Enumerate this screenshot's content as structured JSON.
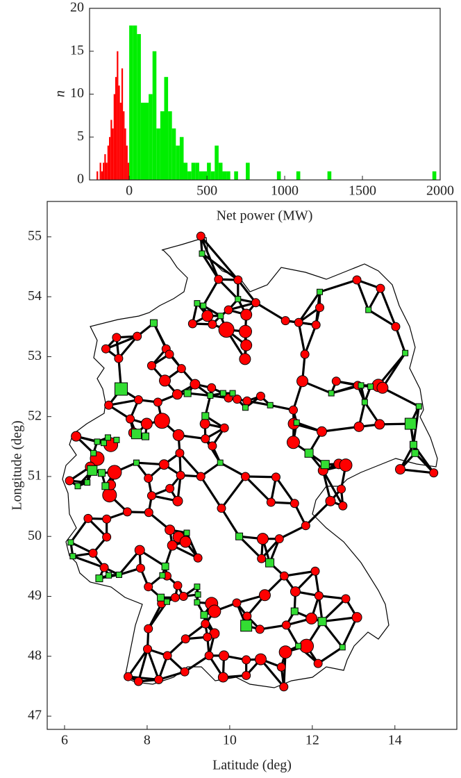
{
  "chart_data": [
    {
      "type": "histogram",
      "xlabel": "Net power (MW)",
      "ylabel": "n",
      "xlim": [
        -255,
        2000
      ],
      "xticks": [
        0,
        500,
        1000,
        1500,
        2000
      ],
      "ylim": [
        0,
        20
      ],
      "yticks": [
        0,
        5,
        10,
        15,
        20
      ],
      "series": [
        {
          "color": "#ff0000",
          "bins": [
            -210,
            -200,
            -190,
            -180,
            -170,
            -160,
            -150,
            -140,
            -130,
            -120,
            -110,
            -100,
            -90,
            -80,
            -70,
            -60,
            -50,
            -40,
            -30,
            -20,
            -10,
            0
          ],
          "values": [
            1,
            0,
            2,
            1,
            2,
            3,
            2,
            4,
            5,
            7,
            6,
            10,
            12,
            15,
            11,
            9,
            13,
            8,
            6,
            4,
            2
          ]
        },
        {
          "color": "#00ee00",
          "bins": [
            0,
            25,
            50,
            75,
            100,
            125,
            150,
            175,
            200,
            225,
            250,
            275,
            300,
            325,
            350,
            375,
            400,
            425,
            450,
            475,
            500,
            525,
            550,
            575,
            600,
            625,
            650,
            675,
            700,
            725,
            750,
            775,
            800,
            825,
            850,
            875,
            900,
            925,
            950,
            975,
            1000,
            1025,
            1050,
            1075,
            1100,
            1125,
            1150,
            1175,
            1200,
            1225,
            1250,
            1275,
            1300,
            1325,
            1350,
            1375,
            1400,
            1425,
            1450,
            1475,
            1500,
            1525,
            1550,
            1575,
            1600,
            1625,
            1650,
            1675,
            1700,
            1725,
            1750,
            1775,
            1800,
            1825,
            1850,
            1875,
            1900,
            1925,
            1950,
            1975,
            2000
          ],
          "values": [
            18,
            18,
            17,
            9,
            9,
            10,
            15,
            6,
            8,
            12,
            8,
            6,
            4,
            5,
            2,
            1,
            2,
            2,
            1,
            1,
            2,
            1,
            4,
            2,
            1,
            1,
            0,
            1,
            0,
            0,
            2,
            0,
            0,
            0,
            0,
            0,
            0,
            0,
            1,
            0,
            0,
            0,
            0,
            1,
            0,
            0,
            0,
            0,
            0,
            0,
            0,
            1,
            0,
            0,
            0,
            0,
            0,
            0,
            0,
            0,
            0,
            0,
            0,
            0,
            0,
            0,
            0,
            0,
            0,
            0,
            0,
            0,
            0,
            0,
            0,
            0,
            0,
            0,
            1,
            0
          ]
        }
      ]
    },
    {
      "type": "scatter",
      "xlabel": "Latitude (deg)",
      "ylabel": "Longitude (deg)",
      "xlim": [
        5.58,
        15.5
      ],
      "xticks": [
        6,
        8,
        10,
        12,
        14
      ],
      "ylim": [
        46.78,
        55.59
      ],
      "yticks": [
        47,
        48,
        49,
        50,
        51,
        52,
        53,
        54,
        55
      ],
      "series": [
        {
          "color": "#ff0000",
          "marker": "circle",
          "x": [
            9.3,
            9.73,
            10.2,
            9.97,
            9.46,
            9.58,
            9.1,
            9.92,
            10.4,
            10.63,
            11.35,
            11.67,
            12.18,
            13.08,
            13.65,
            14.02,
            12.09,
            10.38,
            10.4,
            10.37,
            11.82,
            11.76,
            12.58,
            13.1,
            13.6,
            13.7,
            8.46,
            8.54,
            8.11,
            7.31,
            7.0,
            7.26,
            7.76,
            8.83,
            9.16,
            8.73,
            8.43,
            7.79,
            7.07,
            8.26,
            9.56,
            10.18,
            10.42,
            10.75,
            9.97,
            11.54,
            11.55,
            11.54,
            12.23,
            13.13,
            13.63,
            12.26,
            12.64,
            12.81,
            14.13,
            14.94,
            11.12,
            10.38,
            9.3,
            9.8,
            11.0,
            11.57,
            12.44,
            12.74,
            12.7,
            9.4,
            9.87,
            9.41,
            9.58,
            8.36,
            7.99,
            7.59,
            7.67,
            8.76,
            8.79,
            8.41,
            8.81,
            8.03,
            8.55,
            8.11,
            8.74,
            7.52,
            8.04,
            7.02,
            6.57,
            6.12,
            6.28,
            7.12,
            6.79,
            6.62,
            7.21,
            7.09,
            7.12,
            8.55,
            8.76,
            8.93,
            8.61,
            9.23,
            7.02,
            6.69,
            6.96,
            7.82,
            7.84,
            8.48,
            8.03,
            8.74,
            8.88,
            8.35,
            8.68,
            9.56,
            9.63,
            9.41,
            9.63,
            10.17,
            10.42,
            10.8,
            10.77,
            11.2,
            11.84,
            11.32,
            10.85,
            11.59,
            12.07,
            12.16,
            11.98,
            11.37,
            11.35,
            11.86,
            11.25,
            12.14,
            13.08,
            12.81,
            10.73,
            10.75,
            10.4,
            9.86,
            9.5,
            9.46,
            8.93,
            8.49,
            8.03,
            8.01,
            7.79,
            8.28,
            7.54,
            8.91,
            9.84,
            10.4,
            11.31
          ],
          "y": [
            55.01,
            54.29,
            54.28,
            53.78,
            53.68,
            53.54,
            53.55,
            53.45,
            53.7,
            53.9,
            53.6,
            53.57,
            53.82,
            54.28,
            54.14,
            53.5,
            53.53,
            53.42,
            53.19,
            52.96,
            53.04,
            52.59,
            52.59,
            52.52,
            52.52,
            52.48,
            53.13,
            53.04,
            52.85,
            52.97,
            53.13,
            53.32,
            53.34,
            52.8,
            52.54,
            52.37,
            52.6,
            52.28,
            52.19,
            52.24,
            52.48,
            52.29,
            52.26,
            52.34,
            52.31,
            52.11,
            51.88,
            51.57,
            51.75,
            51.83,
            51.87,
            51.1,
            51.21,
            51.19,
            51.12,
            51.06,
            50.99,
            51.0,
            51.0,
            50.47,
            50.57,
            50.55,
            50.59,
            50.51,
            50.79,
            51.88,
            51.81,
            51.63,
            51.51,
            51.93,
            51.88,
            51.96,
            51.73,
            51.69,
            51.39,
            51.2,
            51.02,
            50.97,
            50.8,
            50.68,
            50.59,
            50.41,
            50.4,
            50.29,
            50.3,
            50.93,
            51.67,
            51.53,
            51.3,
            51.16,
            51.07,
            50.69,
            50.86,
            50.11,
            49.99,
            49.91,
            49.85,
            49.64,
            49.99,
            49.72,
            49.48,
            49.77,
            49.47,
            49.34,
            49.16,
            49.18,
            49.0,
            48.88,
            48.98,
            48.88,
            48.75,
            48.54,
            48.38,
            48.89,
            48.67,
            49.96,
            49.63,
            49.96,
            50.18,
            49.34,
            49.02,
            49.08,
            49.42,
            49.01,
            48.63,
            48.52,
            48.07,
            48.17,
            47.82,
            47.88,
            48.65,
            48.96,
            48.45,
            47.95,
            47.94,
            48.01,
            48.01,
            48.32,
            48.29,
            48.01,
            48.46,
            48.12,
            47.58,
            47.61,
            47.66,
            47.74,
            47.65,
            47.68,
            47.49
          ],
          "sizes": [
            6,
            6,
            6,
            6,
            8,
            6,
            6,
            11,
            8,
            6,
            6,
            6,
            6,
            6,
            6,
            6,
            6,
            9,
            8,
            8,
            6,
            8,
            6,
            6,
            9,
            8,
            6,
            6,
            6,
            6,
            6,
            6,
            6,
            6,
            7,
            7,
            8,
            6,
            6,
            6,
            6,
            6,
            6,
            6,
            6,
            6,
            8,
            9,
            7,
            7,
            7,
            7,
            7,
            9,
            7,
            6,
            6,
            6,
            6,
            6,
            6,
            6,
            7,
            6,
            6,
            7,
            6,
            6,
            6,
            11,
            8,
            6,
            7,
            8,
            6,
            7,
            6,
            6,
            6,
            6,
            7,
            6,
            6,
            6,
            6,
            6,
            7,
            10,
            10,
            7,
            10,
            10,
            7,
            7,
            8,
            8,
            7,
            6,
            6,
            6,
            6,
            7,
            6,
            6,
            6,
            6,
            6,
            6,
            6,
            9,
            9,
            6,
            7,
            6,
            6,
            8,
            6,
            6,
            6,
            6,
            8,
            7,
            6,
            6,
            8,
            6,
            9,
            10,
            6,
            6,
            7,
            6,
            6,
            8,
            6,
            7,
            6,
            6,
            6,
            6,
            6,
            6,
            6,
            6,
            6,
            6,
            7,
            6,
            6
          ]
        },
        {
          "color": "#33dd33",
          "marker": "square",
          "x": [
            9.33,
            10.2,
            9.36,
            9.21,
            9.78,
            8.16,
            12.18,
            13.36,
            14.25,
            7.37,
            8.98,
            9.53,
            9.41,
            9.84,
            10.07,
            10.38,
            10.98,
            11.62,
            12.46,
            13.18,
            13.41,
            13.27,
            14.38,
            14.58,
            14.45,
            14.49,
            11.92,
            12.31,
            9.77,
            8.96,
            10.23,
            10.97,
            6.15,
            6.2,
            6.84,
            7.07,
            7.32,
            8.44,
            8.37,
            8.33,
            8.48,
            9.21,
            9.23,
            9.21,
            9.38,
            10.4,
            12.24,
            11.57,
            11.66,
            12.73,
            6.79,
            6.95,
            7.05,
            7.26,
            6.7,
            6.67,
            6.9,
            6.55,
            6.32,
            7.74,
            7.96,
            7.74,
            6.99
          ],
          "y": [
            54.72,
            53.96,
            53.85,
            53.89,
            53.68,
            53.56,
            54.08,
            53.78,
            53.06,
            52.46,
            52.39,
            52.35,
            52.01,
            52.39,
            52.39,
            52.15,
            52.19,
            51.9,
            52.39,
            52.52,
            52.5,
            52.24,
            51.88,
            52.17,
            51.53,
            51.39,
            51.39,
            51.2,
            51.23,
            50.06,
            50.0,
            49.56,
            49.9,
            49.67,
            49.3,
            49.35,
            49.36,
            49.5,
            49.35,
            48.98,
            48.91,
            49.16,
            49.03,
            48.9,
            48.69,
            48.51,
            48.58,
            48.75,
            48.17,
            48.15,
            51.58,
            51.56,
            51.65,
            51.61,
            51.39,
            51.1,
            51.06,
            50.9,
            50.84,
            51.71,
            51.67,
            51.23,
            50.84
          ],
          "sizes": [
            4,
            4,
            4,
            4,
            4,
            5,
            4,
            4,
            4,
            9,
            5,
            4,
            5,
            4,
            4,
            4,
            4,
            4,
            4,
            4,
            4,
            4,
            8,
            4,
            5,
            5,
            6,
            6,
            4,
            4,
            5,
            6,
            4,
            4,
            5,
            4,
            4,
            5,
            4,
            5,
            4,
            4,
            4,
            4,
            5,
            8,
            6,
            5,
            4,
            4,
            4,
            4,
            4,
            4,
            4,
            7,
            5,
            4,
            4,
            7,
            5,
            4,
            5
          ]
        }
      ]
    }
  ]
}
